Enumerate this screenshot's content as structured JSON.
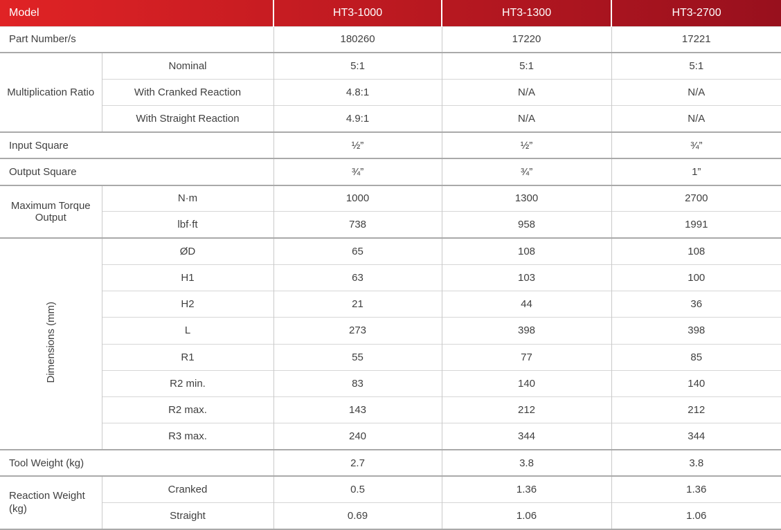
{
  "header": {
    "model_label": "Model",
    "columns": [
      "HT3-1000",
      "HT3-1300",
      "HT3-2700"
    ]
  },
  "sections": {
    "part_number": {
      "label": "Part Number/s",
      "values": [
        "180260",
        "17220",
        "17221"
      ]
    },
    "multiplication_ratio": {
      "label": "Multiplication Ratio",
      "rows": [
        {
          "label": "Nominal",
          "values": [
            "5:1",
            "5:1",
            "5:1"
          ]
        },
        {
          "label": "With Cranked Reaction",
          "values": [
            "4.8:1",
            "N/A",
            "N/A"
          ]
        },
        {
          "label": "With Straight Reaction",
          "values": [
            "4.9:1",
            "N/A",
            "N/A"
          ]
        }
      ]
    },
    "input_square": {
      "label": "Input Square",
      "values": [
        "½”",
        "½”",
        "¾”"
      ]
    },
    "output_square": {
      "label": "Output Square",
      "values": [
        "¾”",
        "¾”",
        "1”"
      ]
    },
    "maximum_torque_output": {
      "label": "Maximum Torque Output",
      "rows": [
        {
          "label": "N·m",
          "values": [
            "1000",
            "1300",
            "2700"
          ]
        },
        {
          "label": "lbf·ft",
          "values": [
            "738",
            "958",
            "1991"
          ]
        }
      ]
    },
    "dimensions_mm": {
      "label": "Dimensions (mm)",
      "rows": [
        {
          "label": "ØD",
          "values": [
            "65",
            "108",
            "108"
          ]
        },
        {
          "label": "H1",
          "values": [
            "63",
            "103",
            "100"
          ]
        },
        {
          "label": "H2",
          "values": [
            "21",
            "44",
            "36"
          ]
        },
        {
          "label": "L",
          "values": [
            "273",
            "398",
            "398"
          ]
        },
        {
          "label": "R1",
          "values": [
            "55",
            "77",
            "85"
          ]
        },
        {
          "label": "R2 min.",
          "values": [
            "83",
            "140",
            "140"
          ]
        },
        {
          "label": "R2 max.",
          "values": [
            "143",
            "212",
            "212"
          ]
        },
        {
          "label": "R3 max.",
          "values": [
            "240",
            "344",
            "344"
          ]
        }
      ]
    },
    "tool_weight": {
      "label": "Tool Weight (kg)",
      "values": [
        "2.7",
        "3.8",
        "3.8"
      ]
    },
    "reaction_weight": {
      "label": "Reaction Weight (kg)",
      "rows": [
        {
          "label": "Cranked",
          "values": [
            "0.5",
            "1.36",
            "1.36"
          ]
        },
        {
          "label": "Straight",
          "values": [
            "0.69",
            "1.06",
            "1.06"
          ]
        }
      ]
    }
  },
  "colors": {
    "header_red_left": "#e02325",
    "header_red_right": "#98101d",
    "header_text": "#ffffff",
    "body_text": "#3f3f3f",
    "section_border": "#a9a9a9",
    "inner_border": "#d6d6d6",
    "column_border": "#c9c9c9"
  }
}
